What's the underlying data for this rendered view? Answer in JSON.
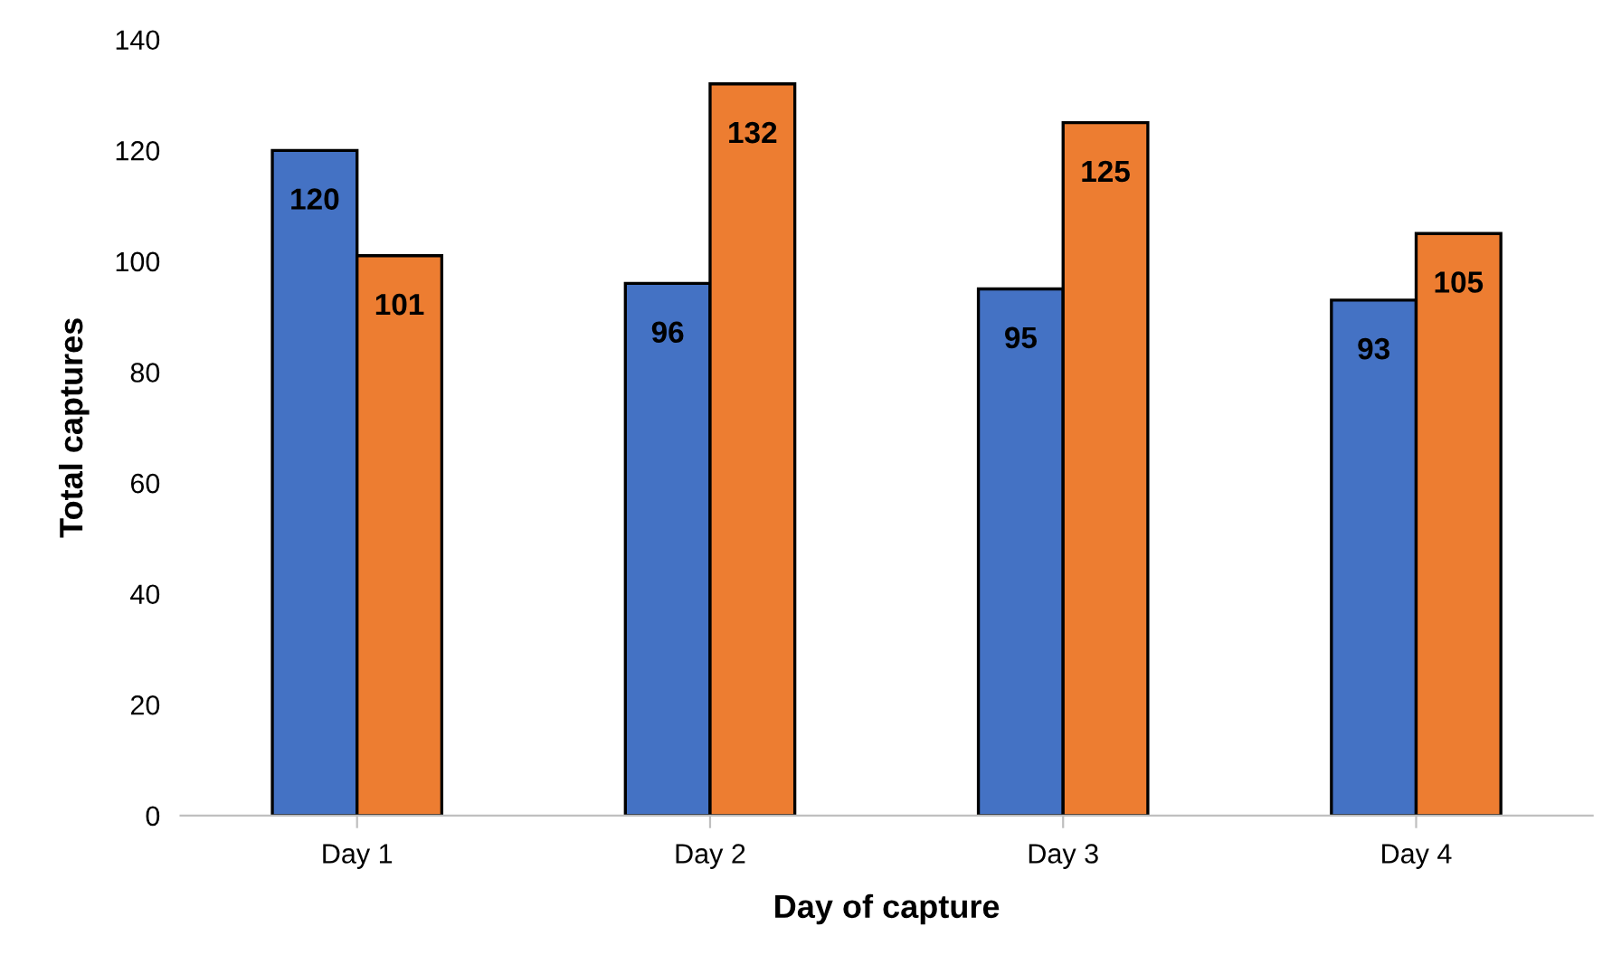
{
  "chart_data": {
    "type": "bar",
    "xlabel": "Day of capture",
    "ylabel": "Total captures",
    "categories": [
      "Day 1",
      "Day 2",
      "Day 3",
      "Day 4"
    ],
    "series": [
      {
        "color": "#4472c4",
        "values": [
          120,
          96,
          95,
          93
        ]
      },
      {
        "color": "#ed7d31",
        "values": [
          101,
          132,
          125,
          105
        ]
      }
    ],
    "ylim": [
      0,
      140
    ],
    "yticks": [
      0,
      20,
      40,
      60,
      80,
      100,
      120,
      140
    ],
    "data_labels": true,
    "grid": false,
    "legend": false
  }
}
